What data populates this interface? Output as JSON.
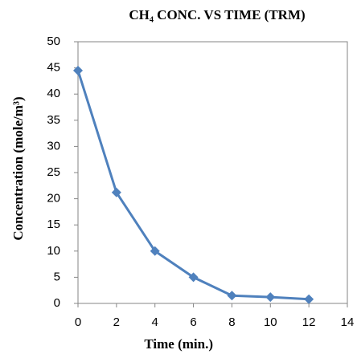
{
  "chart_data": {
    "type": "line",
    "title": "CH₄ CONC. VS TIME (TRM)",
    "x_label": "Time (min.)",
    "y_label": "Concentration (mole/m³)",
    "x": [
      0,
      2,
      4,
      6,
      8,
      10,
      12
    ],
    "series": [
      {
        "name": "CH4",
        "color": "#4f81bd",
        "values": [
          44.5,
          21.2,
          10,
          5,
          1.5,
          1.2,
          0.8
        ]
      }
    ],
    "xlim": [
      0,
      14
    ],
    "xticks": [
      0,
      2,
      4,
      6,
      8,
      10,
      12,
      14
    ],
    "ylim": [
      0,
      50
    ],
    "yticks": [
      0,
      5,
      10,
      15,
      20,
      25,
      30,
      35,
      40,
      45,
      50
    ],
    "grid": false,
    "legend": false
  }
}
